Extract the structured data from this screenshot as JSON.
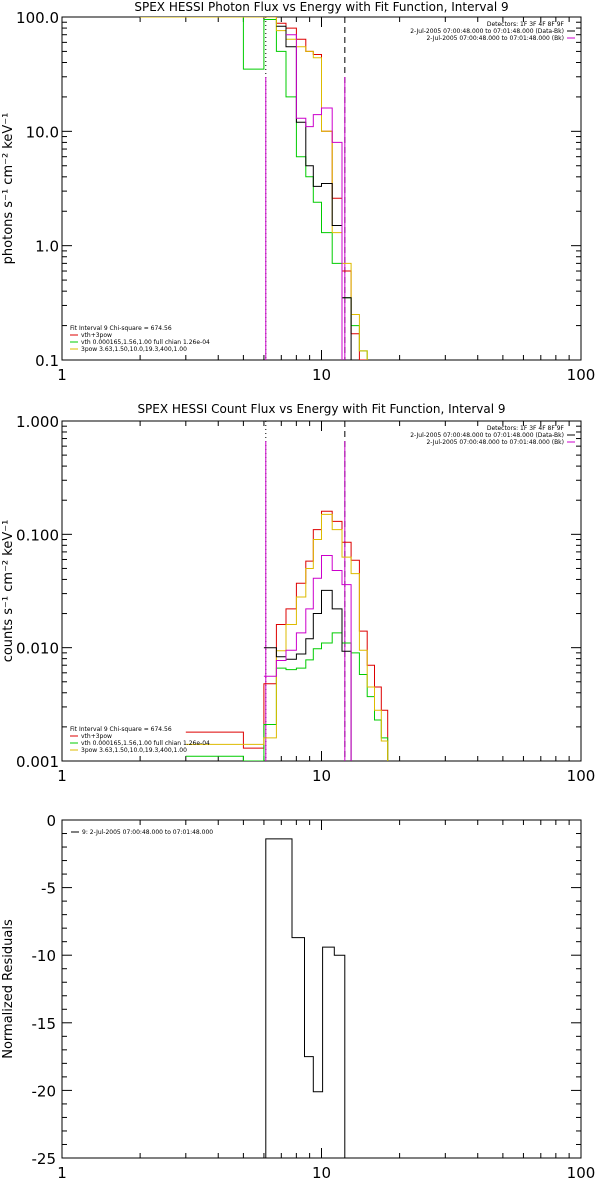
{
  "chart_data": [
    {
      "type": "line",
      "title": "SPEX HESSI Photon Flux vs Energy with Fit Function, Interval 9",
      "ylabel_partial": "photons s⁻¹ cm⁻² keV⁻¹",
      "x_scale": "log",
      "y_scale": "log",
      "xlim": [
        1,
        100
      ],
      "ylim": [
        0.1,
        100
      ],
      "x_ticks": [
        "1",
        "10",
        "100"
      ],
      "y_ticks": [
        "0.1",
        "1.0",
        "10.0",
        "100.0"
      ],
      "legend_topright": [
        {
          "label": "Detectors: 1F 3F 4F 8F 9F",
          "color": "#000000"
        },
        {
          "label": "2-Jul-2005 07:00:48.000 to 07:01:48.000 (Data-Bk)",
          "color": "#000000"
        },
        {
          "label": "2-Jul-2005 07:00:48.000 to 07:01:48.000 (Bk)",
          "color": "#cc00cc"
        }
      ],
      "legend_bottomleft": [
        {
          "label": "Fit Interval 9   Chi-square = 674.56",
          "color": "#000000"
        },
        {
          "label": "vth+3pow",
          "color": "#dd0000"
        },
        {
          "label": "vth 0.000165,1.56,1.00  full chian 1.26e-04",
          "color": "#00cc00"
        },
        {
          "label": "3pow 3.63,1.50,10.0,19.3,400,1.00",
          "color": "#ddbb00"
        }
      ],
      "series": [
        {
          "name": "vth+3pow",
          "color": "#dd0000",
          "edges": [
            6,
            6.7,
            7.3,
            8,
            8.7,
            9.3,
            10,
            11,
            12,
            13,
            14,
            15
          ],
          "values": [
            100,
            88,
            80,
            64,
            50,
            47,
            10,
            2.6,
            0.6,
            0.17,
            0.1
          ]
        },
        {
          "name": "vth",
          "color": "#00cc00",
          "edges": [
            3,
            4,
            5,
            6,
            6.7,
            7.3,
            8,
            8.7,
            9.3,
            10,
            11,
            12,
            13,
            14,
            15
          ],
          "values": [
            100,
            100,
            35,
            95,
            50,
            20,
            6,
            4,
            2.4,
            1.3,
            0.7,
            0.35,
            0.2,
            0.12
          ]
        },
        {
          "name": "3pow",
          "color": "#ddbb00",
          "edges": [
            2,
            3,
            4,
            5,
            6,
            6.7,
            7.3,
            8,
            8.7,
            9.3,
            10,
            11,
            12,
            13,
            14,
            15
          ],
          "values": [
            100,
            100,
            100,
            100,
            100,
            76,
            64,
            55,
            50,
            44,
            10,
            1.3,
            0.7,
            0.25,
            0.12
          ]
        },
        {
          "name": "Data-Bk",
          "color": "#000000",
          "edges": [
            6.7,
            7.3,
            8,
            8.7,
            9.3,
            10,
            11,
            12,
            13
          ],
          "values": [
            83,
            55,
            12,
            5,
            3.3,
            3.5,
            1.5,
            0.35
          ]
        },
        {
          "name": "Bk",
          "color": "#cc00cc",
          "edges": [
            7.3,
            8,
            8.7,
            9.3,
            10,
            11,
            12
          ],
          "values": [
            70,
            13,
            11,
            14,
            16,
            8
          ]
        }
      ],
      "vlines": [
        {
          "x": 6.1,
          "style": "dotted",
          "color": "#000000"
        },
        {
          "x": 12.3,
          "style": "dashed",
          "color": "#000000"
        },
        {
          "x": 6.1,
          "style": "solid",
          "color": "#cc00cc"
        },
        {
          "x": 12.3,
          "style": "solid",
          "color": "#cc00cc"
        }
      ]
    },
    {
      "type": "line",
      "title": "SPEX HESSI Count Flux vs Energy with Fit Function, Interval 9",
      "ylabel_partial": "counts s⁻¹ cm⁻² keV⁻¹",
      "x_scale": "log",
      "y_scale": "log",
      "xlim": [
        1,
        100
      ],
      "ylim": [
        0.001,
        1
      ],
      "x_ticks": [
        "1",
        "10",
        "100"
      ],
      "y_ticks": [
        "0.001",
        "0.010",
        "0.100",
        "1.000"
      ],
      "legend_topright": [
        {
          "label": "Detectors: 1F 3F 4F 8F 9F",
          "color": "#000000"
        },
        {
          "label": "2-Jul-2005 07:00:48.000 to 07:01:48.000 (Data-Bk)",
          "color": "#000000"
        },
        {
          "label": "2-Jul-2005 07:00:48.000 to 07:01:48.000 (Bk)",
          "color": "#cc00cc"
        }
      ],
      "legend_bottomleft": [
        {
          "label": "Fit Interval 9   Chi-square = 674.56",
          "color": "#000000"
        },
        {
          "label": "vth+3pow",
          "color": "#dd0000"
        },
        {
          "label": "vth 0.000165,1.56,1.00  full chian 1.26e-04",
          "color": "#00cc00"
        },
        {
          "label": "3pow 3.63,1.50,10.0,19.3,400,1.00",
          "color": "#ddbb00"
        }
      ],
      "series": [
        {
          "name": "vth+3pow",
          "color": "#dd0000",
          "edges": [
            3,
            4,
            5,
            6,
            6.7,
            7.3,
            8,
            8.7,
            9.3,
            10,
            11,
            12,
            13,
            14,
            15,
            16,
            17,
            18
          ],
          "values": [
            0.0018,
            0.0018,
            0.0013,
            0.0048,
            0.016,
            0.022,
            0.037,
            0.058,
            0.11,
            0.16,
            0.13,
            0.085,
            0.059,
            0.014,
            0.007,
            0.0045,
            0.0028
          ]
        },
        {
          "name": "vth",
          "color": "#00cc00",
          "edges": [
            3,
            4,
            5,
            6,
            6.7,
            7.3,
            8,
            8.7,
            9.3,
            10,
            11,
            12,
            13,
            14,
            15,
            16,
            17,
            18
          ],
          "values": [
            0.0011,
            0.0011,
            0.001,
            0.0021,
            0.0066,
            0.0064,
            0.0066,
            0.0078,
            0.0098,
            0.011,
            0.0135,
            0.011,
            0.009,
            0.0058,
            0.0037,
            0.0023,
            0.0016
          ]
        },
        {
          "name": "3pow",
          "color": "#ddbb00",
          "edges": [
            3,
            4,
            5,
            6,
            6.7,
            7.3,
            8,
            8.7,
            9.3,
            10,
            11,
            12,
            13,
            14,
            15,
            16,
            17,
            18
          ],
          "values": [
            0.0014,
            0.0014,
            0.0014,
            0.0016,
            0.0094,
            0.016,
            0.028,
            0.05,
            0.09,
            0.15,
            0.11,
            0.063,
            0.045,
            0.0095,
            0.0045,
            0.0028,
            0.0015
          ]
        },
        {
          "name": "Data-Bk",
          "color": "#000000",
          "edges": [
            6,
            6.7,
            7.3,
            8,
            8.7,
            9.3,
            10,
            11,
            12,
            13
          ],
          "values": [
            0.01,
            0.0083,
            0.0079,
            0.0088,
            0.012,
            0.02,
            0.032,
            0.022,
            0.0093
          ]
        },
        {
          "name": "Bk",
          "color": "#cc00cc",
          "edges": [
            6,
            6.7,
            7.3,
            8,
            8.7,
            9.3,
            10,
            11,
            12,
            13
          ],
          "values": [
            0.0056,
            0.0077,
            0.0095,
            0.0135,
            0.022,
            0.041,
            0.065,
            0.048,
            0.036
          ]
        }
      ],
      "vlines": [
        {
          "x": 6.1,
          "style": "dotted",
          "color": "#000000"
        },
        {
          "x": 12.3,
          "style": "dashed",
          "color": "#000000"
        },
        {
          "x": 6.1,
          "style": "solid",
          "color": "#cc00cc"
        },
        {
          "x": 12.3,
          "style": "solid",
          "color": "#cc00cc"
        }
      ]
    },
    {
      "type": "line",
      "title": "",
      "ylabel": "Normalized Residuals",
      "x_scale": "log",
      "y_scale": "linear",
      "xlim": [
        1,
        100
      ],
      "ylim": [
        -25,
        0
      ],
      "x_ticks": [
        "1",
        "10",
        "100"
      ],
      "y_ticks": [
        "0",
        "-5",
        "-10",
        "-15",
        "-20",
        "-25"
      ],
      "legend_topleft": [
        {
          "label": "9:  2-Jul-2005 07:00:48.000 to 07:01:48.000",
          "color": "#000000"
        }
      ],
      "series": [
        {
          "name": "9:  2-Jul-2005 07:00:48.000 to 07:01:48.000",
          "color": "#000000",
          "edges": [
            6.1,
            6.9,
            7.7,
            8.6,
            9.3,
            10.1,
            11.2,
            12.3
          ],
          "values": [
            -1.4,
            -1.4,
            -8.7,
            -17.5,
            -20.1,
            -9.4,
            -10.0
          ],
          "start_from": -25,
          "end_to": -25
        }
      ]
    }
  ]
}
